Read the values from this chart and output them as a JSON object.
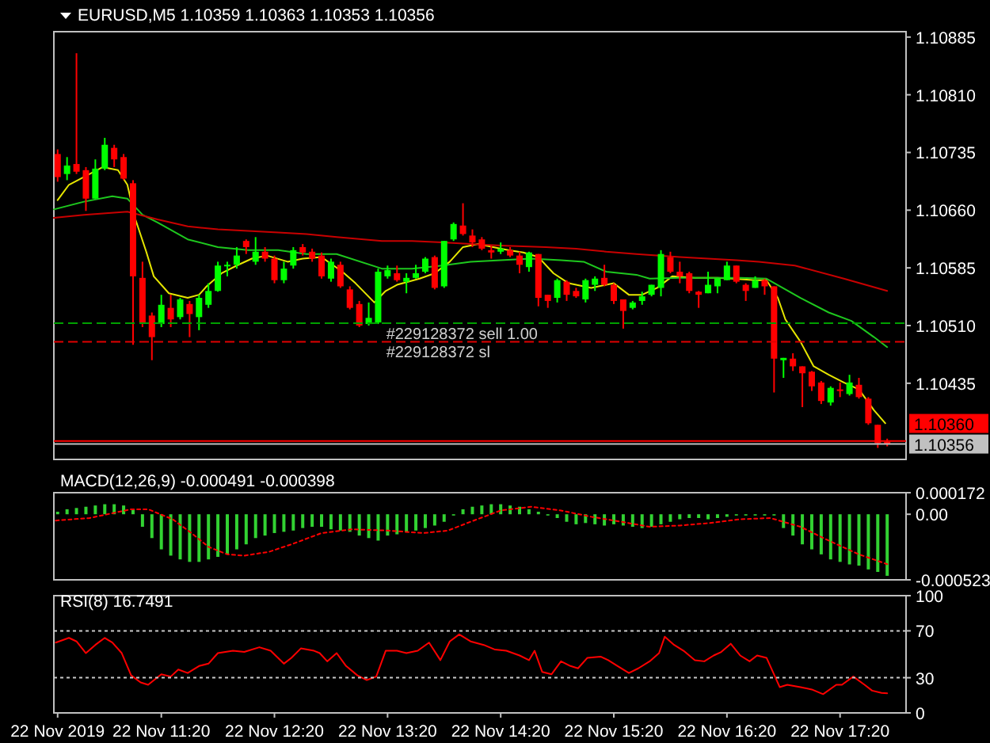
{
  "chart_data": [
    {
      "type": "candlestick",
      "title": "EURUSD,M5 1.10359 1.10363 1.10353 1.10356",
      "x": [
        "2019-11-22T10:25",
        "2019-11-22T10:30",
        "2019-11-22T10:35",
        "2019-11-22T10:40",
        "2019-11-22T10:45",
        "2019-11-22T10:50",
        "2019-11-22T10:55",
        "2019-11-22T11:00",
        "2019-11-22T11:05",
        "2019-11-22T11:10",
        "2019-11-22T11:15",
        "2019-11-22T11:20",
        "2019-11-22T11:25",
        "2019-11-22T11:30",
        "2019-11-22T11:35",
        "2019-11-22T11:40",
        "2019-11-22T11:45",
        "2019-11-22T11:50",
        "2019-11-22T11:55",
        "2019-11-22T12:00",
        "2019-11-22T12:05",
        "2019-11-22T12:10",
        "2019-11-22T12:15",
        "2019-11-22T12:20",
        "2019-11-22T12:25",
        "2019-11-22T12:30",
        "2019-11-22T12:35",
        "2019-11-22T12:40",
        "2019-11-22T12:45",
        "2019-11-22T12:50",
        "2019-11-22T12:55",
        "2019-11-22T13:00",
        "2019-11-22T13:05",
        "2019-11-22T13:10",
        "2019-11-22T13:15",
        "2019-11-22T13:20",
        "2019-11-22T13:25",
        "2019-11-22T13:30",
        "2019-11-22T13:35",
        "2019-11-22T13:40",
        "2019-11-22T13:45",
        "2019-11-22T13:50",
        "2019-11-22T13:55",
        "2019-11-22T14:00",
        "2019-11-22T14:05",
        "2019-11-22T14:10",
        "2019-11-22T14:15",
        "2019-11-22T14:20",
        "2019-11-22T14:25",
        "2019-11-22T14:30",
        "2019-11-22T14:35",
        "2019-11-22T14:40",
        "2019-11-22T14:45",
        "2019-11-22T14:50",
        "2019-11-22T14:55",
        "2019-11-22T15:00",
        "2019-11-22T15:05",
        "2019-11-22T15:10",
        "2019-11-22T15:15",
        "2019-11-22T15:20",
        "2019-11-22T15:25",
        "2019-11-22T15:30",
        "2019-11-22T15:35",
        "2019-11-22T15:40",
        "2019-11-22T15:45",
        "2019-11-22T15:50",
        "2019-11-22T15:55",
        "2019-11-22T16:00",
        "2019-11-22T16:05",
        "2019-11-22T16:10",
        "2019-11-22T16:15",
        "2019-11-22T16:20",
        "2019-11-22T16:25",
        "2019-11-22T16:30",
        "2019-11-22T16:35",
        "2019-11-22T16:40",
        "2019-11-22T16:45",
        "2019-11-22T16:50",
        "2019-11-22T16:55",
        "2019-11-22T17:00",
        "2019-11-22T17:05",
        "2019-11-22T17:10",
        "2019-11-22T17:15",
        "2019-11-22T17:20",
        "2019-11-22T17:25",
        "2019-11-22T17:30",
        "2019-11-22T17:35",
        "2019-11-22T17:40",
        "2019-11-22T17:45"
      ],
      "ohlc": [
        [
          1.10733,
          1.10739,
          1.10697,
          1.10703
        ],
        [
          1.10707,
          1.10729,
          1.10699,
          1.10718
        ],
        [
          1.1072,
          1.10864,
          1.10707,
          1.1071
        ],
        [
          1.10712,
          1.10716,
          1.10659,
          1.10675
        ],
        [
          1.10675,
          1.10726,
          1.10675,
          1.10714
        ],
        [
          1.10714,
          1.10754,
          1.10712,
          1.10745
        ],
        [
          1.10741,
          1.10745,
          1.10716,
          1.10726
        ],
        [
          1.10729,
          1.10733,
          1.10699,
          1.10701
        ],
        [
          1.10695,
          1.10699,
          1.10485,
          1.10574
        ],
        [
          1.10572,
          1.10593,
          1.10508,
          1.10514
        ],
        [
          1.10523,
          1.10527,
          1.10465,
          1.10495
        ],
        [
          1.10512,
          1.1055,
          1.10508,
          1.10537
        ],
        [
          1.10533,
          1.1055,
          1.10508,
          1.10518
        ],
        [
          1.10521,
          1.10546,
          1.10518,
          1.10544
        ],
        [
          1.10538,
          1.10542,
          1.10495,
          1.10525
        ],
        [
          1.10521,
          1.1055,
          1.10504,
          1.10546
        ],
        [
          1.10537,
          1.10565,
          1.10533,
          1.10555
        ],
        [
          1.10555,
          1.10593,
          1.10554,
          1.10588
        ],
        [
          1.10588,
          1.10593,
          1.10574,
          1.10589
        ],
        [
          1.10589,
          1.10612,
          1.10584,
          1.10601
        ],
        [
          1.1062,
          1.10622,
          1.10603,
          1.10612
        ],
        [
          1.10593,
          1.10625,
          1.10589,
          1.10606
        ],
        [
          1.10606,
          1.10612,
          1.10593,
          1.10597
        ],
        [
          1.10597,
          1.10601,
          1.10565,
          1.10569
        ],
        [
          1.10569,
          1.10593,
          1.10565,
          1.10584
        ],
        [
          1.10588,
          1.10612,
          1.10584,
          1.10608
        ],
        [
          1.10612,
          1.10616,
          1.10601,
          1.10605
        ],
        [
          1.10606,
          1.1061,
          1.10593,
          1.10597
        ],
        [
          1.10601,
          1.10605,
          1.10571,
          1.10574
        ],
        [
          1.10571,
          1.10597,
          1.10567,
          1.10593
        ],
        [
          1.10589,
          1.10593,
          1.10559,
          1.10561
        ],
        [
          1.10557,
          1.10561,
          1.10531,
          1.10533
        ],
        [
          1.10538,
          1.10542,
          1.10508,
          1.1051
        ],
        [
          1.10512,
          1.1054,
          1.1051,
          1.1052
        ],
        [
          1.10514,
          1.10584,
          1.10512,
          1.1058
        ],
        [
          1.10574,
          1.10588,
          1.10571,
          1.10582
        ],
        [
          1.10578,
          1.10588,
          1.10567,
          1.10569
        ],
        [
          1.10567,
          1.10578,
          1.10552,
          1.10572
        ],
        [
          1.10572,
          1.10589,
          1.10571,
          1.10578
        ],
        [
          1.1058,
          1.10599,
          1.10578,
          1.10597
        ],
        [
          1.10599,
          1.10601,
          1.10557,
          1.10559
        ],
        [
          1.10561,
          1.1062,
          1.10559,
          1.1062
        ],
        [
          1.10622,
          1.10644,
          1.1062,
          1.10642
        ],
        [
          1.1064,
          1.10669,
          1.10627,
          1.10629
        ],
        [
          1.10627,
          1.10635,
          1.10612,
          1.10618
        ],
        [
          1.10622,
          1.10625,
          1.10608,
          1.1061
        ],
        [
          1.10608,
          1.10614,
          1.10597,
          1.10605
        ],
        [
          1.10606,
          1.10618,
          1.10603,
          1.1061
        ],
        [
          1.10608,
          1.10612,
          1.10599,
          1.10601
        ],
        [
          1.10601,
          1.10606,
          1.10578,
          1.10589
        ],
        [
          1.10586,
          1.10606,
          1.1058,
          1.10605
        ],
        [
          1.10603,
          1.10603,
          1.10535,
          1.10546
        ],
        [
          1.1055,
          1.1055,
          1.10533,
          1.10542
        ],
        [
          1.10546,
          1.10571,
          1.1054,
          1.10569
        ],
        [
          1.10567,
          1.10569,
          1.10542,
          1.1055
        ],
        [
          1.10555,
          1.10559,
          1.10546,
          1.10548
        ],
        [
          1.10544,
          1.10571,
          1.1054,
          1.10569
        ],
        [
          1.10563,
          1.10574,
          1.10555,
          1.10571
        ],
        [
          1.10572,
          1.10589,
          1.10561,
          1.10563
        ],
        [
          1.10563,
          1.10565,
          1.10538,
          1.10542
        ],
        [
          1.10544,
          1.10544,
          1.10506,
          1.10529
        ],
        [
          1.10533,
          1.10542,
          1.10531,
          1.1054
        ],
        [
          1.10542,
          1.10554,
          1.10537,
          1.10548
        ],
        [
          1.1055,
          1.10563,
          1.10548,
          1.10563
        ],
        [
          1.10559,
          1.10608,
          1.10548,
          1.10603
        ],
        [
          1.10599,
          1.10606,
          1.10578,
          1.1058
        ],
        [
          1.1058,
          1.10593,
          1.10565,
          1.10574
        ],
        [
          1.10578,
          1.1058,
          1.10552,
          1.10555
        ],
        [
          1.10554,
          1.10555,
          1.10533,
          1.1055
        ],
        [
          1.10552,
          1.1058,
          1.10552,
          1.10563
        ],
        [
          1.10561,
          1.10572,
          1.10552,
          1.10571
        ],
        [
          1.10569,
          1.10593,
          1.10569,
          1.10588
        ],
        [
          1.10588,
          1.10588,
          1.10565,
          1.10567
        ],
        [
          1.10563,
          1.10565,
          1.10542,
          1.10555
        ],
        [
          1.10559,
          1.10574,
          1.10559,
          1.10569
        ],
        [
          1.10569,
          1.10571,
          1.1055,
          1.10561
        ],
        [
          1.10561,
          1.10561,
          1.10423,
          1.10467
        ],
        [
          1.10465,
          1.10468,
          1.10442,
          1.10468
        ],
        [
          1.10467,
          1.10474,
          1.10451,
          1.10457
        ],
        [
          1.10457,
          1.10457,
          1.10404,
          1.10448
        ],
        [
          1.1045,
          1.10451,
          1.10425,
          1.10431
        ],
        [
          1.10436,
          1.10438,
          1.10408,
          1.10412
        ],
        [
          1.1041,
          1.10431,
          1.10406,
          1.10429
        ],
        [
          1.10427,
          1.10436,
          1.10417,
          1.10425
        ],
        [
          1.10421,
          1.10446,
          1.10419,
          1.10436
        ],
        [
          1.10433,
          1.10442,
          1.10415,
          1.10417
        ],
        [
          1.10415,
          1.10417,
          1.10381,
          1.10383
        ],
        [
          1.10381,
          1.10381,
          1.10351,
          1.10357
        ],
        [
          1.10359,
          1.10363,
          1.10353,
          1.10356
        ]
      ],
      "series": [
        {
          "type": "line",
          "color": "#e6e600",
          "x": [
            "2019-11-22T10:25",
            "2019-11-22T10:31",
            "2019-11-22T10:49",
            "2019-11-22T10:57",
            "2019-11-22T11:02",
            "2019-11-22T11:06",
            "2019-11-22T11:12",
            "2019-11-22T11:16",
            "2019-11-22T11:24",
            "2019-11-22T11:34",
            "2019-11-22T11:40",
            "2019-11-22T11:44",
            "2019-11-22T11:52",
            "2019-11-22T12:00",
            "2019-11-22T12:08",
            "2019-11-22T12:16",
            "2019-11-22T12:27",
            "2019-11-22T12:35",
            "2019-11-22T12:45",
            "2019-11-22T12:56",
            "2019-11-22T13:03",
            "2019-11-22T13:09",
            "2019-11-22T13:13",
            "2019-11-22T13:19",
            "2019-11-22T13:25",
            "2019-11-22T13:37",
            "2019-11-22T13:45",
            "2019-11-22T13:53",
            "2019-11-22T14:00",
            "2019-11-22T14:08",
            "2019-11-22T14:16",
            "2019-11-22T14:24",
            "2019-11-22T14:32",
            "2019-11-22T14:40",
            "2019-11-22T14:48",
            "2019-11-22T14:56",
            "2019-11-22T15:08",
            "2019-11-22T15:20",
            "2019-11-22T15:28",
            "2019-11-22T15:35",
            "2019-11-22T15:43",
            "2019-11-22T15:51",
            "2019-11-22T16:03",
            "2019-11-22T16:15",
            "2019-11-22T16:23",
            "2019-11-22T16:35",
            "2019-11-22T16:41",
            "2019-11-22T16:47",
            "2019-11-22T16:51",
            "2019-11-22T16:59",
            "2019-11-22T17:06",
            "2019-11-22T17:14",
            "2019-11-22T17:22",
            "2019-11-22T17:30",
            "2019-11-22T17:38",
            "2019-11-22T17:44"
          ],
          "values": [
            1.10673,
            1.10693,
            1.10716,
            1.10712,
            1.10693,
            1.1065,
            1.10606,
            1.10574,
            1.10552,
            1.10546,
            1.1055,
            1.10561,
            1.10578,
            1.10588,
            1.10597,
            1.10601,
            1.10593,
            1.10597,
            1.10599,
            1.1058,
            1.10565,
            1.1055,
            1.1054,
            1.10555,
            1.10563,
            1.10571,
            1.10578,
            1.10593,
            1.10612,
            1.10616,
            1.10612,
            1.10608,
            1.10605,
            1.10599,
            1.10578,
            1.10565,
            1.10559,
            1.10565,
            1.1055,
            1.1055,
            1.10559,
            1.10574,
            1.10572,
            1.10572,
            1.10571,
            1.10569,
            1.10569,
            1.10546,
            1.10518,
            1.10489,
            1.10457,
            1.10446,
            1.10436,
            1.10427,
            1.104,
            1.10383
          ]
        },
        {
          "type": "line",
          "color": "#1ec81e",
          "x": [
            "2019-11-22T10:23",
            "2019-11-22T10:39",
            "2019-11-22T10:54",
            "2019-11-22T11:02",
            "2019-11-22T11:10",
            "2019-11-22T11:18",
            "2019-11-22T11:34",
            "2019-11-22T11:50",
            "2019-11-22T12:06",
            "2019-11-22T12:22",
            "2019-11-22T12:37",
            "2019-11-22T12:53",
            "2019-11-22T13:17",
            "2019-11-22T13:33",
            "2019-11-22T13:49",
            "2019-11-22T14:04",
            "2019-11-22T14:20",
            "2019-11-22T14:36",
            "2019-11-22T14:52",
            "2019-11-22T15:04",
            "2019-11-22T15:16",
            "2019-11-22T15:32",
            "2019-11-22T15:39",
            "2019-11-22T15:55",
            "2019-11-22T16:11",
            "2019-11-22T16:27",
            "2019-11-22T16:41",
            "2019-11-22T16:59",
            "2019-11-22T17:14",
            "2019-11-22T17:26",
            "2019-11-22T17:38",
            "2019-11-22T17:45"
          ],
          "values": [
            1.10661,
            1.10671,
            1.10678,
            1.10675,
            1.10654,
            1.10644,
            1.10622,
            1.10612,
            1.10608,
            1.10608,
            1.10603,
            1.10603,
            1.10584,
            1.10584,
            1.10588,
            1.10593,
            1.10595,
            1.10597,
            1.10595,
            1.10593,
            1.1058,
            1.10576,
            1.10571,
            1.10572,
            1.10572,
            1.10572,
            1.10571,
            1.10546,
            1.10527,
            1.10516,
            1.10495,
            1.10482
          ]
        },
        {
          "type": "line",
          "color": "#c80000",
          "x": [
            "2019-11-22T10:23",
            "2019-11-22T10:39",
            "2019-11-22T11:02",
            "2019-11-22T11:18",
            "2019-11-22T11:34",
            "2019-11-22T11:50",
            "2019-11-22T12:06",
            "2019-11-22T12:22",
            "2019-11-22T12:37",
            "2019-11-22T12:53",
            "2019-11-22T13:17",
            "2019-11-22T13:33",
            "2019-11-22T13:49",
            "2019-11-22T14:04",
            "2019-11-22T14:20",
            "2019-11-22T14:44",
            "2019-11-22T15:00",
            "2019-11-22T15:16",
            "2019-11-22T15:32",
            "2019-11-22T15:55",
            "2019-11-22T16:25",
            "2019-11-22T16:37",
            "2019-11-22T16:56",
            "2019-11-22T17:22",
            "2019-11-22T17:45"
          ],
          "values": [
            1.1065,
            1.10654,
            1.10658,
            1.10648,
            1.10639,
            1.10635,
            1.10633,
            1.10631,
            1.10629,
            1.10625,
            1.1062,
            1.1062,
            1.10618,
            1.10616,
            1.10614,
            1.10612,
            1.1061,
            1.10606,
            1.10603,
            1.10599,
            1.10595,
            1.10593,
            1.10588,
            1.10571,
            1.10555
          ]
        }
      ],
      "xlim": [
        "2019-11-22T10:23",
        "2019-11-22T17:55"
      ],
      "ylim": [
        1.10336,
        1.10892
      ],
      "yticks": [
        1.10435,
        {
          "value": 1.1051,
          "label": "1.10510"
        },
        1.10585,
        {
          "value": 1.1066,
          "label": "1.10660"
        },
        1.10735,
        {
          "value": 1.1081,
          "label": "1.10810"
        },
        1.10885
      ],
      "ref_lines": [
        {
          "axis": "y",
          "value": 1.10513,
          "label": "#229128372 sell 1.00",
          "color": "#00a000",
          "line_style": "dashed"
        },
        {
          "axis": "y",
          "value": 1.10489,
          "label": "#229128372 sl",
          "color": "#e00000",
          "line_style": "dashed"
        },
        {
          "axis": "y",
          "value": 1.1036,
          "label": "1.10360",
          "color": "#ff0000",
          "line_style": "solid"
        },
        {
          "axis": "y",
          "value": 1.10356,
          "label": "1.10356",
          "color": "#c0c0c0",
          "line_style": "solid"
        }
      ],
      "tick_labels": "y"
    },
    {
      "type": "bar",
      "title": "MACD(12,26,9) -0.000491 -0.000398",
      "x": [
        "2019-11-22T10:25",
        "2019-11-22T10:30",
        "2019-11-22T10:35",
        "2019-11-22T10:40",
        "2019-11-22T10:45",
        "2019-11-22T10:50",
        "2019-11-22T10:55",
        "2019-11-22T11:00",
        "2019-11-22T11:05",
        "2019-11-22T11:10",
        "2019-11-22T11:15",
        "2019-11-22T11:20",
        "2019-11-22T11:25",
        "2019-11-22T11:30",
        "2019-11-22T11:35",
        "2019-11-22T11:40",
        "2019-11-22T11:45",
        "2019-11-22T11:50",
        "2019-11-22T11:55",
        "2019-11-22T12:00",
        "2019-11-22T12:05",
        "2019-11-22T12:10",
        "2019-11-22T12:15",
        "2019-11-22T12:20",
        "2019-11-22T12:25",
        "2019-11-22T12:30",
        "2019-11-22T12:35",
        "2019-11-22T12:40",
        "2019-11-22T12:45",
        "2019-11-22T12:50",
        "2019-11-22T12:55",
        "2019-11-22T13:00",
        "2019-11-22T13:05",
        "2019-11-22T13:10",
        "2019-11-22T13:15",
        "2019-11-22T13:20",
        "2019-11-22T13:25",
        "2019-11-22T13:30",
        "2019-11-22T13:35",
        "2019-11-22T13:40",
        "2019-11-22T13:45",
        "2019-11-22T13:50",
        "2019-11-22T13:55",
        "2019-11-22T14:00",
        "2019-11-22T14:05",
        "2019-11-22T14:10",
        "2019-11-22T14:15",
        "2019-11-22T14:20",
        "2019-11-22T14:25",
        "2019-11-22T14:30",
        "2019-11-22T14:35",
        "2019-11-22T14:40",
        "2019-11-22T14:45",
        "2019-11-22T14:50",
        "2019-11-22T14:55",
        "2019-11-22T15:00",
        "2019-11-22T15:05",
        "2019-11-22T15:10",
        "2019-11-22T15:15",
        "2019-11-22T15:20",
        "2019-11-22T15:25",
        "2019-11-22T15:30",
        "2019-11-22T15:35",
        "2019-11-22T15:40",
        "2019-11-22T15:45",
        "2019-11-22T15:50",
        "2019-11-22T15:55",
        "2019-11-22T16:00",
        "2019-11-22T16:05",
        "2019-11-22T16:10",
        "2019-11-22T16:15",
        "2019-11-22T16:20",
        "2019-11-22T16:25",
        "2019-11-22T16:30",
        "2019-11-22T16:35",
        "2019-11-22T16:40",
        "2019-11-22T16:45",
        "2019-11-22T16:50",
        "2019-11-22T16:55",
        "2019-11-22T17:00",
        "2019-11-22T17:05",
        "2019-11-22T17:10",
        "2019-11-22T17:15",
        "2019-11-22T17:20",
        "2019-11-22T17:25",
        "2019-11-22T17:30",
        "2019-11-22T17:35",
        "2019-11-22T17:40",
        "2019-11-22T17:45"
      ],
      "series": [
        {
          "type": "bar",
          "color": "#32d232",
          "values": [
            2e-05,
            4e-05,
            5e-05,
            6e-05,
            7e-05,
            8e-05,
            8e-05,
            7e-05,
            4e-05,
            -0.0001,
            -0.00019,
            -0.00028,
            -0.00033,
            -0.00036,
            -0.00038,
            -0.00038,
            -0.00036,
            -0.00034,
            -0.00032,
            -0.00028,
            -0.00024,
            -0.00019,
            -0.00017,
            -0.00015,
            -0.00014,
            -0.00013,
            -0.00011,
            -0.0001,
            -0.0001,
            -0.00012,
            -0.00013,
            -0.00014,
            -0.00017,
            -0.00019,
            -0.00021,
            -0.00017,
            -0.00016,
            -0.00014,
            -0.00013,
            -0.00011,
            -9e-05,
            -6e-05,
            -1e-05,
            4e-05,
            6e-05,
            7e-05,
            8e-05,
            8e-05,
            7e-05,
            6e-05,
            4e-05,
            2e-05,
            -1e-05,
            -3e-05,
            -6e-05,
            -8e-05,
            -7e-05,
            -8e-05,
            -9e-05,
            -8e-05,
            -9e-05,
            -0.0001,
            -0.00011,
            -0.0001,
            -8e-05,
            -6e-05,
            -4e-05,
            -3e-05,
            -3e-05,
            -4e-05,
            -3e-05,
            -2e-05,
            -1e-05,
            -1e-05,
            -1e-05,
            -1e-05,
            -1e-05,
            -0.00011,
            -0.00017,
            -0.00024,
            -0.00028,
            -0.00032,
            -0.00036,
            -0.00038,
            -0.0004,
            -0.00041,
            -0.00044,
            -0.00046,
            -0.000491
          ]
        },
        {
          "type": "line",
          "color": "#ff0000",
          "line_style": "dotted",
          "x": [
            "2019-11-22T10:24",
            "2019-11-22T10:42",
            "2019-11-22T11:04",
            "2019-11-22T11:13",
            "2019-11-22T11:26",
            "2019-11-22T11:36",
            "2019-11-22T11:45",
            "2019-11-22T11:55",
            "2019-11-22T12:04",
            "2019-11-22T12:17",
            "2019-11-22T12:29",
            "2019-11-22T12:45",
            "2019-11-22T13:01",
            "2019-11-22T13:20",
            "2019-11-22T13:39",
            "2019-11-22T13:52",
            "2019-11-22T14:04",
            "2019-11-22T14:20",
            "2019-11-22T14:36",
            "2019-11-22T14:52",
            "2019-11-22T15:08",
            "2019-11-22T15:24",
            "2019-11-22T15:39",
            "2019-11-22T15:55",
            "2019-11-22T16:11",
            "2019-11-22T16:27",
            "2019-11-22T16:43",
            "2019-11-22T16:59",
            "2019-11-22T17:14",
            "2019-11-22T17:30",
            "2019-11-22T17:45"
          ],
          "values": [
            -5e-05,
            -3e-05,
            4e-05,
            4e-05,
            -4e-05,
            -0.00015,
            -0.00026,
            -0.00032,
            -0.00033,
            -0.0003,
            -0.00024,
            -0.00015,
            -0.00012,
            -0.00013,
            -0.00015,
            -0.00013,
            -6e-05,
            3e-05,
            6e-05,
            3e-05,
            -2e-05,
            -6e-05,
            -0.0001,
            -9e-05,
            -7e-05,
            -4e-05,
            -3e-05,
            -0.0001,
            -0.00021,
            -0.00032,
            -0.000398
          ]
        }
      ],
      "xlim": [
        "2019-11-22T10:23",
        "2019-11-22T17:55"
      ],
      "ylim": [
        -0.000523,
        0.000172
      ],
      "yticks": [
        -0.000523,
        {
          "value": 0,
          "label": "0.00"
        },
        0.000172
      ],
      "tick_labels": "y"
    },
    {
      "type": "line",
      "title": "RSI(8) 16.7491",
      "series": [
        {
          "color": "#ff0000",
          "x": [
            "2019-11-22T10:24",
            "2019-11-22T10:31",
            "2019-11-22T10:35",
            "2019-11-22T10:40",
            "2019-11-22T10:45",
            "2019-11-22T10:50",
            "2019-11-22T10:54",
            "2019-11-22T10:59",
            "2019-11-22T11:04",
            "2019-11-22T11:09",
            "2019-11-22T11:13",
            "2019-11-22T11:20",
            "2019-11-22T11:25",
            "2019-11-22T11:29",
            "2019-11-22T11:34",
            "2019-11-22T11:40",
            "2019-11-22T11:45",
            "2019-11-22T11:50",
            "2019-11-22T11:58",
            "2019-11-22T12:04",
            "2019-11-22T12:12",
            "2019-11-22T12:18",
            "2019-11-22T12:25",
            "2019-11-22T12:29",
            "2019-11-22T12:34",
            "2019-11-22T12:41",
            "2019-11-22T12:44",
            "2019-11-22T12:48",
            "2019-11-22T12:53",
            "2019-11-22T12:58",
            "2019-11-22T13:04",
            "2019-11-22T13:09",
            "2019-11-22T13:14",
            "2019-11-22T13:19",
            "2019-11-22T13:25",
            "2019-11-22T13:30",
            "2019-11-22T13:36",
            "2019-11-22T13:42",
            "2019-11-22T13:48",
            "2019-11-22T13:53",
            "2019-11-22T13:58",
            "2019-11-22T14:04",
            "2019-11-22T14:11",
            "2019-11-22T14:17",
            "2019-11-22T14:23",
            "2019-11-22T14:30",
            "2019-11-22T14:35",
            "2019-11-22T14:38",
            "2019-11-22T14:42",
            "2019-11-22T14:47",
            "2019-11-22T14:52",
            "2019-11-22T14:57",
            "2019-11-22T15:01",
            "2019-11-22T15:06",
            "2019-11-22T15:13",
            "2019-11-22T15:17",
            "2019-11-22T15:22",
            "2019-11-22T15:28",
            "2019-11-22T15:33",
            "2019-11-22T15:39",
            "2019-11-22T15:44",
            "2019-11-22T15:47",
            "2019-11-22T15:52",
            "2019-11-22T15:57",
            "2019-11-22T16:03",
            "2019-11-22T16:08",
            "2019-11-22T16:13",
            "2019-11-22T16:17",
            "2019-11-22T16:22",
            "2019-11-22T16:27",
            "2019-11-22T16:32",
            "2019-11-22T16:36",
            "2019-11-22T16:41",
            "2019-11-22T16:48",
            "2019-11-22T16:52",
            "2019-11-22T16:59",
            "2019-11-22T17:05",
            "2019-11-22T17:11",
            "2019-11-22T17:18",
            "2019-11-22T17:21",
            "2019-11-22T17:27",
            "2019-11-22T17:33",
            "2019-11-22T17:37",
            "2019-11-22T17:42",
            "2019-11-22T17:45"
          ],
          "values": [
            60,
            64,
            61,
            51,
            58,
            64,
            60,
            51,
            32,
            26,
            24,
            33,
            31,
            37,
            34,
            40,
            42,
            51,
            53,
            52,
            56,
            53,
            42,
            47,
            55,
            53,
            51,
            44,
            51,
            40,
            32,
            28,
            31,
            53,
            53,
            51,
            53,
            60,
            45,
            61,
            67,
            61,
            58,
            54,
            53,
            49,
            45,
            53,
            35,
            33,
            44,
            40,
            38,
            47,
            48,
            45,
            40,
            34,
            38,
            44,
            51,
            65,
            58,
            53,
            45,
            44,
            49,
            52,
            59,
            49,
            44,
            49,
            47,
            22,
            24,
            22,
            20,
            16,
            24,
            24,
            31,
            24,
            19,
            17,
            16.7491
          ]
        }
      ],
      "xlim": [
        "2019-11-22T10:23",
        "2019-11-22T17:55"
      ],
      "ylim": [
        0,
        100
      ],
      "yticks": [
        0,
        30,
        70,
        100
      ],
      "xticks": [
        {
          "value": "2019-11-22T10:25",
          "label": "22 Nov 2019"
        },
        {
          "value": "2019-11-22T11:20",
          "label": "22 Nov 11:20"
        },
        {
          "value": "2019-11-22T12:20",
          "label": "22 Nov 12:20"
        },
        {
          "value": "2019-11-22T13:20",
          "label": "22 Nov 13:20"
        },
        {
          "value": "2019-11-22T14:20",
          "label": "22 Nov 14:20"
        },
        {
          "value": "2019-11-22T15:20",
          "label": "22 Nov 15:20"
        },
        {
          "value": "2019-11-22T16:20",
          "label": "22 Nov 16:20"
        },
        {
          "value": "2019-11-22T17:20",
          "label": "22 Nov 17:20"
        }
      ],
      "ref_lines": [
        {
          "axis": "y",
          "value": 70,
          "color": "#c8c8c8",
          "line_style": "dotted"
        },
        {
          "axis": "y",
          "value": 30,
          "color": "#c8c8c8",
          "line_style": "dotted"
        }
      ]
    }
  ]
}
